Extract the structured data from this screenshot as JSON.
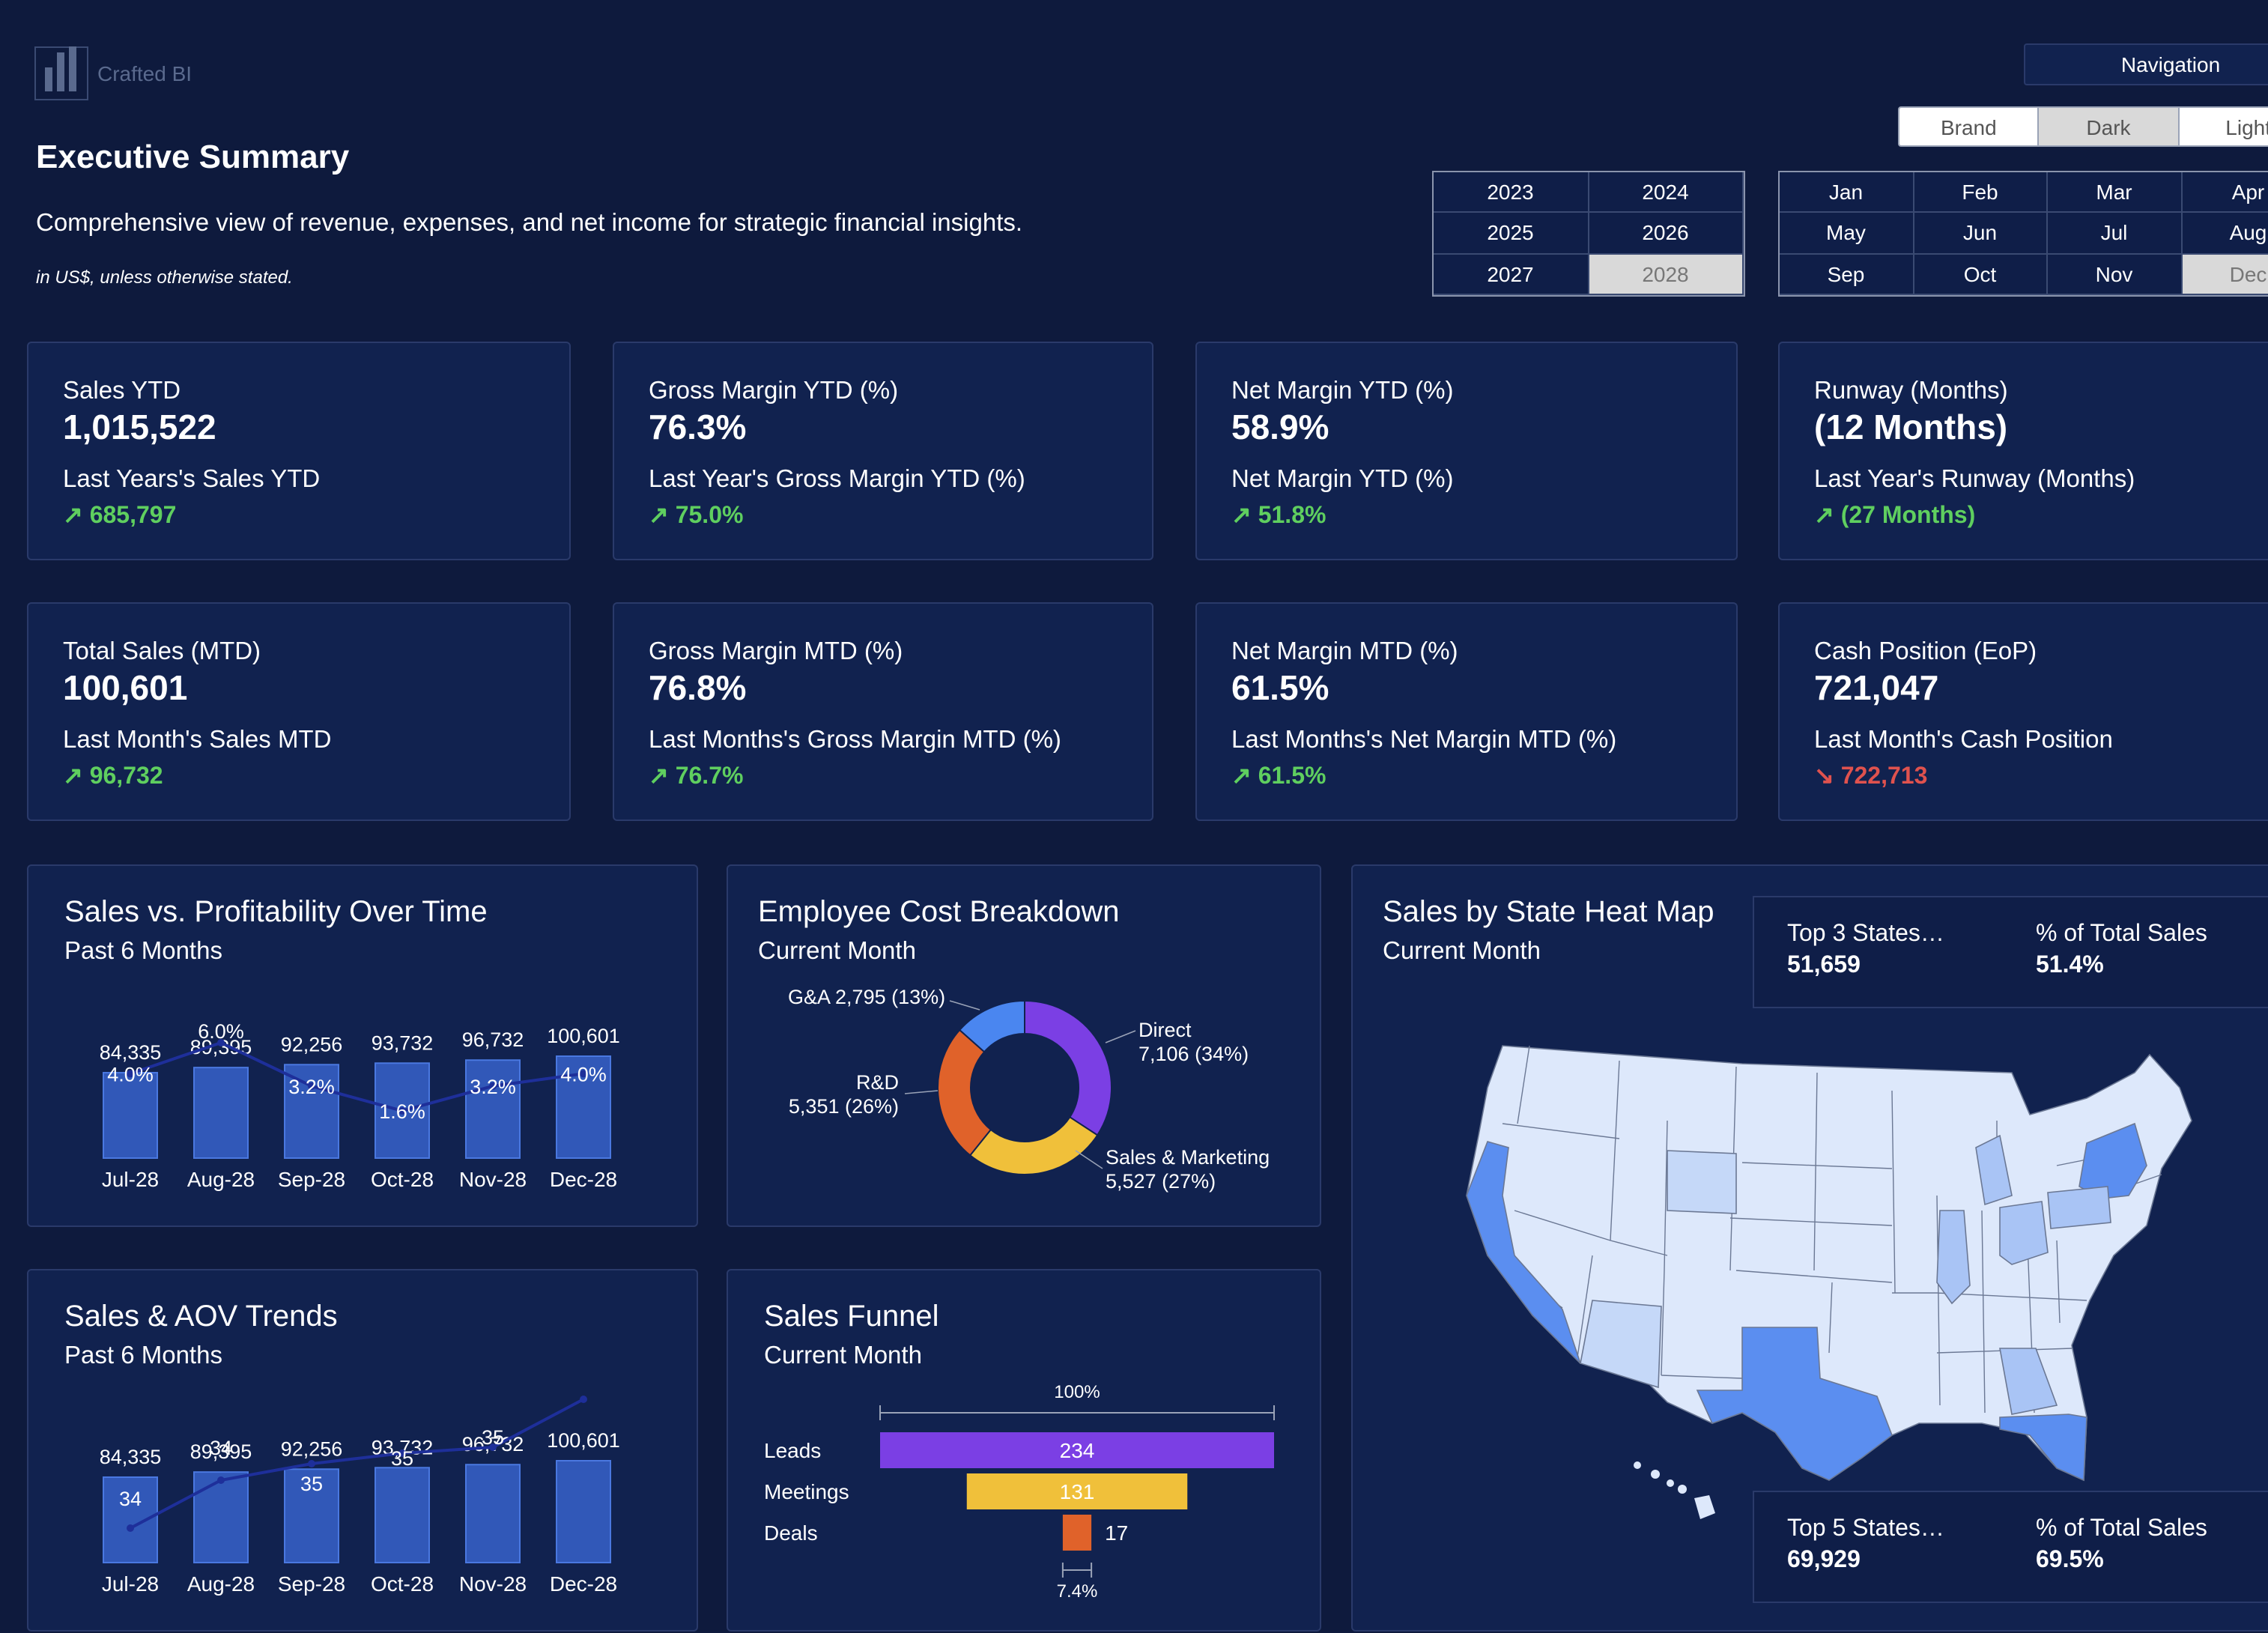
{
  "header": {
    "logo_text": "Crafted BI",
    "title": "Executive Summary",
    "subtitle": "Comprehensive view of revenue, expenses, and net income for strategic financial insights.",
    "note": "in US$, unless otherwise stated."
  },
  "navigation": {
    "label": "Navigation",
    "themes": [
      "Brand",
      "Dark",
      "Light"
    ],
    "active_theme": "Dark"
  },
  "years": [
    "2023",
    "2024",
    "2025",
    "2026",
    "2027",
    "2028"
  ],
  "selected_year": "2028",
  "months": [
    "Jan",
    "Feb",
    "Mar",
    "Apr",
    "May",
    "Jun",
    "Jul",
    "Aug",
    "Sep",
    "Oct",
    "Nov",
    "Dec"
  ],
  "selected_month": "Dec",
  "kpis": [
    {
      "label": "Sales YTD",
      "value": "1,015,522",
      "compare_label": "Last Years's Sales YTD",
      "compare_value": "↗ 685,797",
      "trend": "up"
    },
    {
      "label": "Gross Margin YTD (%)",
      "value": "76.3%",
      "compare_label": "Last Year's Gross Margin YTD (%)",
      "compare_value": "↗ 75.0%",
      "trend": "up"
    },
    {
      "label": "Net Margin YTD (%)",
      "value": "58.9%",
      "compare_label": "Net Margin YTD (%)",
      "compare_value": "↗ 51.8%",
      "trend": "up"
    },
    {
      "label": "Runway (Months)",
      "value": "(12 Months)",
      "compare_label": "Last Year's Runway (Months)",
      "compare_value": "↗ (27 Months)",
      "trend": "up"
    },
    {
      "label": "Total Sales (MTD)",
      "value": "100,601",
      "compare_label": "Last Month's Sales MTD",
      "compare_value": "↗ 96,732",
      "trend": "up"
    },
    {
      "label": "Gross Margin MTD (%)",
      "value": "76.8%",
      "compare_label": "Last Months's Gross Margin MTD (%)",
      "compare_value": "↗ 76.7%",
      "trend": "up"
    },
    {
      "label": "Net Margin MTD (%)",
      "value": "61.5%",
      "compare_label": "Last Months's Net Margin MTD (%)",
      "compare_value": "↗ 61.5%",
      "trend": "up"
    },
    {
      "label": "Cash Position (EoP)",
      "value": "721,047",
      "compare_label": "Last Month's Cash Position",
      "compare_value": "↘ 722,713",
      "trend": "down"
    }
  ],
  "panels": {
    "profitability": {
      "title": "Sales vs. Profitability Over Time",
      "subtitle": "Past 6 Months"
    },
    "employee_cost": {
      "title": "Employee Cost Breakdown",
      "subtitle": "Current Month"
    },
    "state_map": {
      "title": "Sales by State Heat Map",
      "subtitle": "Current Month"
    },
    "aov": {
      "title": "Sales & AOV Trends",
      "subtitle": "Past 6 Months"
    },
    "funnel": {
      "title": "Sales Funnel",
      "subtitle": "Current Month"
    }
  },
  "map_stats": {
    "top3_label": "Top 3 States…",
    "top3_value": "51,659",
    "top3_pct_label": "% of Total Sales",
    "top3_pct_value": "51.4%",
    "top5_label": "Top 5 States…",
    "top5_value": "69,929",
    "top5_pct_label": "% of Total Sales",
    "top5_pct_value": "69.5%"
  },
  "colors": {
    "background": "#0e1a3d",
    "card": "#11224f",
    "bar": "#3158b8",
    "bar_border": "#4a78e0",
    "line": "#1e2f9a",
    "up": "#5fcf5f",
    "down": "#e0524e",
    "donut_direct": "#7b3fe4",
    "donut_sales_marketing": "#f0c03a",
    "donut_rd": "#e0622a",
    "donut_ga": "#4a86f0",
    "map_light": "#dde8fb",
    "map_mid": "#a9c4f5",
    "map_dark": "#5b8ef0"
  },
  "chart_data": [
    {
      "type": "bar",
      "name": "profitability",
      "categories": [
        "Jul-28",
        "Aug-28",
        "Sep-28",
        "Oct-28",
        "Nov-28",
        "Dec-28"
      ],
      "series": [
        {
          "name": "Sales",
          "values": [
            84335,
            89395,
            92256,
            93732,
            96732,
            100601
          ],
          "labels": [
            "84,335",
            "89,395",
            "92,256",
            "93,732",
            "96,732",
            "100,601"
          ]
        },
        {
          "name": "Margin",
          "values": [
            4.0,
            6.0,
            3.2,
            1.6,
            3.2,
            4.0
          ],
          "labels": [
            "4.0%",
            "6.0%",
            "3.2%",
            "1.6%",
            "3.2%",
            "4.0%"
          ]
        }
      ]
    },
    {
      "type": "pie",
      "name": "employee_cost",
      "slices": [
        {
          "label": "Direct",
          "value": 7106,
          "text": "7,106 (34%)"
        },
        {
          "label": "Sales & Marketing",
          "value": 5527,
          "text": "5,527 (27%)"
        },
        {
          "label": "R&D",
          "value": 5351,
          "text": "5,351 (26%)"
        },
        {
          "label": "G&A",
          "value": 2795,
          "text": "2,795 (13%)"
        }
      ]
    },
    {
      "type": "bar",
      "name": "aov",
      "categories": [
        "Jul-28",
        "Aug-28",
        "Sep-28",
        "Oct-28",
        "Nov-28",
        "Dec-28"
      ],
      "series": [
        {
          "name": "Sales",
          "values": [
            84335,
            89395,
            92256,
            93732,
            96732,
            100601
          ],
          "labels": [
            "84,335",
            "89,395",
            "92,256",
            "93,732",
            "96,732",
            "100,601"
          ]
        },
        {
          "name": "AOV",
          "values": [
            34,
            34,
            35,
            35,
            35,
            36
          ],
          "labels": [
            "34",
            "34",
            "35",
            "35",
            "35",
            ""
          ]
        }
      ]
    },
    {
      "type": "bar",
      "name": "funnel",
      "categories": [
        "Leads",
        "Meetings",
        "Deals"
      ],
      "values": [
        234,
        131,
        17
      ],
      "top_label": "100%",
      "bottom_label": "7.4%"
    }
  ]
}
